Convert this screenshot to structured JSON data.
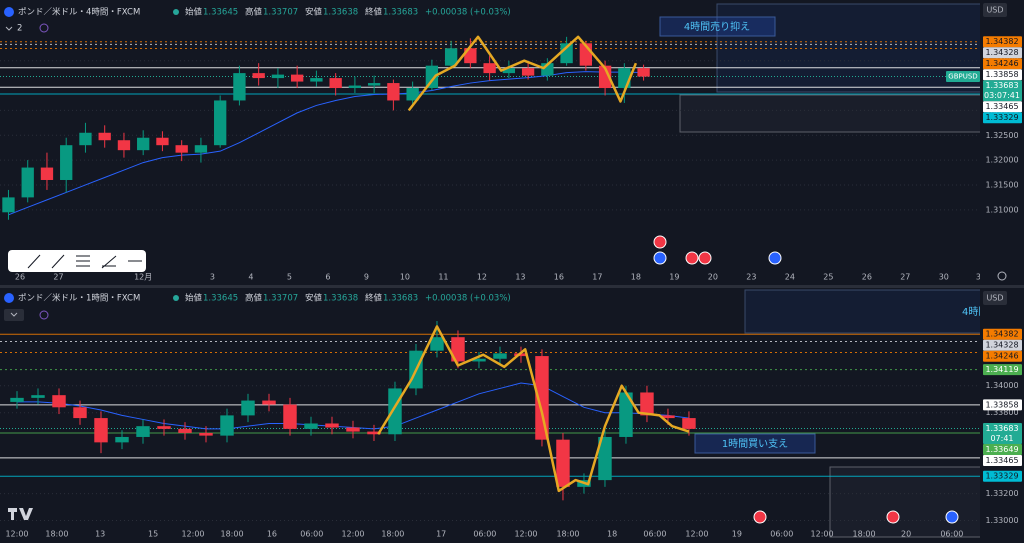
{
  "chart_data": [
    {
      "type": "candlestick",
      "title": "ポンド／米ドル・4時間・FXCM",
      "ohlc_labels": [
        "始値",
        "高値",
        "安値",
        "終値"
      ],
      "ohlc_values": [
        1.33645,
        1.33707,
        1.33638,
        1.33683
      ],
      "change": "+0.00038 (+0.03%)",
      "currency": "USD",
      "indicators_hidden": 2,
      "x": [
        -0.3,
        0.2,
        0.7,
        1.2,
        1.7,
        2.2,
        2.7,
        3.2,
        3.7,
        4.2,
        4.7,
        5.2,
        5.7,
        6.2,
        6.7,
        7.2,
        7.7,
        8.2,
        8.7,
        9.2,
        9.7,
        10.2,
        10.7,
        11.2,
        11.7,
        12.2,
        12.7,
        13.2,
        13.7,
        14.2,
        14.7,
        15.2,
        15.7,
        16.2
      ],
      "open": [
        1.3095,
        1.3125,
        1.3185,
        1.316,
        1.323,
        1.3255,
        1.324,
        1.322,
        1.3245,
        1.323,
        1.3215,
        1.323,
        1.332,
        1.3375,
        1.3365,
        1.3372,
        1.3358,
        1.3365,
        1.3345,
        1.335,
        1.3355,
        1.332,
        1.3345,
        1.339,
        1.3425,
        1.3395,
        1.3375,
        1.3385,
        1.337,
        1.3395,
        1.3435,
        1.339,
        1.3345,
        1.3385
      ],
      "high": [
        1.314,
        1.32,
        1.3215,
        1.3245,
        1.3275,
        1.327,
        1.3255,
        1.326,
        1.3258,
        1.324,
        1.3245,
        1.333,
        1.339,
        1.3395,
        1.3385,
        1.339,
        1.338,
        1.3375,
        1.3368,
        1.337,
        1.3362,
        1.3358,
        1.3402,
        1.344,
        1.3445,
        1.341,
        1.34,
        1.3398,
        1.3405,
        1.3448,
        1.344,
        1.34,
        1.3395,
        1.3392
      ],
      "low": [
        1.308,
        1.3115,
        1.314,
        1.3135,
        1.3215,
        1.3225,
        1.3205,
        1.321,
        1.3218,
        1.3198,
        1.3195,
        1.3225,
        1.331,
        1.335,
        1.3345,
        1.3345,
        1.3348,
        1.333,
        1.3335,
        1.3335,
        1.33,
        1.331,
        1.334,
        1.3385,
        1.3385,
        1.336,
        1.3365,
        1.3362,
        1.336,
        1.339,
        1.338,
        1.333,
        1.3315,
        1.336
      ],
      "close": [
        1.3125,
        1.3185,
        1.316,
        1.323,
        1.3255,
        1.324,
        1.322,
        1.3245,
        1.323,
        1.3215,
        1.323,
        1.332,
        1.3375,
        1.3365,
        1.3372,
        1.3358,
        1.3365,
        1.3345,
        1.335,
        1.3355,
        1.332,
        1.3345,
        1.339,
        1.3425,
        1.3395,
        1.3375,
        1.3385,
        1.337,
        1.3395,
        1.3435,
        1.339,
        1.3345,
        1.3385,
        1.3368
      ],
      "up_color": "#089981",
      "down_color": "#f23645",
      "ma": {
        "color": "#2962ff",
        "values": [
          1.309,
          1.3105,
          1.312,
          1.3135,
          1.315,
          1.3165,
          1.318,
          1.3195,
          1.3205,
          1.321,
          1.3212,
          1.3218,
          1.3235,
          1.3255,
          1.3275,
          1.3295,
          1.331,
          1.332,
          1.3328,
          1.3332,
          1.3333,
          1.3335,
          1.334,
          1.3348,
          1.3355,
          1.336,
          1.3363,
          1.3366,
          1.337,
          1.3376,
          1.3378,
          1.3377,
          1.3377,
          1.3376
        ]
      },
      "zigzag": {
        "color": "#e5a823",
        "x": [
          10.1,
          10.8,
          11.3,
          11.9,
          12.5,
          13.1,
          13.6,
          14.5,
          15.2,
          15.6,
          16.0
        ],
        "y": [
          1.33,
          1.337,
          1.339,
          1.3448,
          1.338,
          1.34,
          1.3385,
          1.3448,
          1.3385,
          1.3318,
          1.3395
        ]
      },
      "levels": [
        {
          "value": 1.34382,
          "color": "#f57c00",
          "style": "dotted",
          "text_color": "#131722"
        },
        {
          "value": 1.34328,
          "color": "#d1d4dc",
          "style": "dotted",
          "text_color": "#131722"
        },
        {
          "value": 1.34246,
          "color": "#f57c00",
          "style": "dotted",
          "text_color": "#131722"
        },
        {
          "value": 1.33858,
          "color": "#ffffff",
          "style": "solid",
          "text_color": "#131722"
        },
        {
          "value": 1.33465,
          "color": "#ffffff",
          "style": "solid",
          "text_color": "#131722"
        },
        {
          "value": 1.33329,
          "color": "#00bcd4",
          "style": "solid",
          "text_color": "#131722"
        }
      ],
      "last": {
        "value": 1.33683,
        "tag": "GBPUSD",
        "countdown": "03:07:41",
        "color": "#22ab94"
      },
      "notes": [
        "4時間売り抑え"
      ],
      "xlim": [
        -0.52,
        24.94
      ],
      "ylim": [
        1.2993,
        1.3506
      ],
      "xticks": [
        {
          "value": 0,
          "label": "26"
        },
        {
          "value": 1,
          "label": "27"
        },
        {
          "value": 3.2,
          "label": "12月"
        },
        {
          "value": 5,
          "label": "3"
        },
        {
          "value": 6,
          "label": "4"
        },
        {
          "value": 7,
          "label": "5"
        },
        {
          "value": 8,
          "label": "6"
        },
        {
          "value": 9,
          "label": "9"
        },
        {
          "value": 10,
          "label": "10"
        },
        {
          "value": 11,
          "label": "11"
        },
        {
          "value": 12,
          "label": "12"
        },
        {
          "value": 13,
          "label": "13"
        },
        {
          "value": 14,
          "label": "16"
        },
        {
          "value": 15,
          "label": "17"
        },
        {
          "value": 16,
          "label": "18"
        },
        {
          "value": 17,
          "label": "19"
        },
        {
          "value": 18,
          "label": "20"
        },
        {
          "value": 19,
          "label": "23"
        },
        {
          "value": 20,
          "label": "24"
        },
        {
          "value": 21,
          "label": "25"
        },
        {
          "value": 22,
          "label": "26"
        },
        {
          "value": 23,
          "label": "27"
        },
        {
          "value": 24,
          "label": "30"
        },
        {
          "value": 24.9,
          "label": "3"
        }
      ],
      "yticks": [
        {
          "value": 1.31,
          "label": "1.31000"
        },
        {
          "value": 1.315,
          "label": "1.31500"
        },
        {
          "value": 1.32,
          "label": "1.32000"
        },
        {
          "value": 1.325,
          "label": "1.32500"
        },
        {
          "value": 1.33,
          "label": "1.33000"
        },
        {
          "value": 1.34,
          "label": "1.34000"
        }
      ],
      "grid": true
    },
    {
      "type": "candlestick",
      "title": "ポンド／米ドル・1時間・FXCM",
      "ohlc_labels": [
        "始値",
        "高値",
        "安値",
        "終値"
      ],
      "ohlc_values": [
        1.33645,
        1.33707,
        1.33638,
        1.33683
      ],
      "change": "+0.00038 (+0.03%)",
      "currency": "USD",
      "x": [
        0,
        0.5,
        1,
        1.5,
        2,
        2.5,
        3,
        3.5,
        4,
        4.5,
        5,
        5.5,
        6,
        6.5,
        7,
        7.5,
        8,
        8.5,
        9,
        9.5,
        10,
        10.5,
        11,
        11.5,
        12,
        12.5,
        13,
        13.5,
        14,
        14.5,
        15,
        15.5,
        16
      ],
      "open": [
        1.3388,
        1.3391,
        1.3393,
        1.3384,
        1.3376,
        1.3358,
        1.3362,
        1.337,
        1.3368,
        1.3365,
        1.3363,
        1.3378,
        1.3389,
        1.3386,
        1.3368,
        1.3372,
        1.3369,
        1.3366,
        1.3364,
        1.3398,
        1.3426,
        1.3436,
        1.3418,
        1.342,
        1.3424,
        1.3422,
        1.336,
        1.3325,
        1.333,
        1.3362,
        1.3395,
        1.3378,
        1.3376
      ],
      "high": [
        1.3396,
        1.3398,
        1.3398,
        1.3389,
        1.3381,
        1.3367,
        1.3375,
        1.3375,
        1.3373,
        1.337,
        1.3383,
        1.3394,
        1.3394,
        1.3391,
        1.3377,
        1.3377,
        1.3374,
        1.3371,
        1.3403,
        1.3431,
        1.3448,
        1.3441,
        1.3425,
        1.3429,
        1.3429,
        1.3427,
        1.3365,
        1.3335,
        1.3367,
        1.34,
        1.34,
        1.3383,
        1.3381
      ],
      "low": [
        1.3383,
        1.3386,
        1.3379,
        1.3371,
        1.335,
        1.3353,
        1.3357,
        1.3363,
        1.336,
        1.3358,
        1.3358,
        1.3373,
        1.3381,
        1.3363,
        1.3363,
        1.3364,
        1.3361,
        1.3359,
        1.3359,
        1.3393,
        1.3421,
        1.3413,
        1.3413,
        1.3415,
        1.3417,
        1.3355,
        1.3315,
        1.332,
        1.3325,
        1.3357,
        1.3373,
        1.3371,
        1.3363
      ],
      "close": [
        1.3391,
        1.3393,
        1.3384,
        1.3376,
        1.3358,
        1.3362,
        1.337,
        1.3368,
        1.3365,
        1.3363,
        1.3378,
        1.3389,
        1.3386,
        1.3368,
        1.3372,
        1.3369,
        1.3366,
        1.3364,
        1.3398,
        1.3426,
        1.3436,
        1.3418,
        1.342,
        1.3424,
        1.3422,
        1.336,
        1.3325,
        1.333,
        1.3362,
        1.3395,
        1.3378,
        1.3376,
        1.3368
      ],
      "up_color": "#089981",
      "down_color": "#f23645",
      "ma": {
        "color": "#2962ff",
        "values": [
          1.3388,
          1.3388,
          1.3387,
          1.3385,
          1.3382,
          1.3378,
          1.3375,
          1.3372,
          1.337,
          1.3368,
          1.3368,
          1.337,
          1.3372,
          1.3372,
          1.3371,
          1.337,
          1.3369,
          1.3368,
          1.337,
          1.3376,
          1.3382,
          1.3388,
          1.3394,
          1.3398,
          1.3402,
          1.34,
          1.3392,
          1.3384,
          1.338,
          1.338,
          1.3379,
          1.3378,
          1.3376
        ]
      },
      "zigzag": {
        "color": "#e5a823",
        "x": [
          8.6,
          9.4,
          10.0,
          10.5,
          11.1,
          11.6,
          12.1,
          12.5,
          12.9,
          13.3,
          13.6,
          14.0,
          14.4,
          14.8,
          15.3,
          15.6,
          16.0
        ],
        "y": [
          1.3364,
          1.3405,
          1.3444,
          1.3415,
          1.3423,
          1.3414,
          1.3427,
          1.338,
          1.3322,
          1.333,
          1.3327,
          1.337,
          1.34,
          1.338,
          1.3378,
          1.337,
          1.3366
        ]
      },
      "levels": [
        {
          "value": 1.34382,
          "color": "#f57c00",
          "style": "solid",
          "text_color": "#131722"
        },
        {
          "value": 1.34328,
          "color": "#d1d4dc",
          "style": "dotted",
          "text_color": "#131722"
        },
        {
          "value": 1.34246,
          "color": "#f57c00",
          "style": "dotted",
          "text_color": "#131722"
        },
        {
          "value": 1.34119,
          "color": "#4caf50",
          "style": "dotted",
          "text_color": "#ffffff"
        },
        {
          "value": 1.33858,
          "color": "#ffffff",
          "style": "solid",
          "text_color": "#131722"
        },
        {
          "value": 1.33649,
          "color": "#4caf50",
          "style": "solid",
          "text_color": "#ffffff"
        },
        {
          "value": 1.33465,
          "color": "#ffffff",
          "style": "solid",
          "text_color": "#131722"
        },
        {
          "value": 1.33329,
          "color": "#00bcd4",
          "style": "solid",
          "text_color": "#131722"
        }
      ],
      "last": {
        "value": 1.33683,
        "countdown": "07:41",
        "color": "#22ab94"
      },
      "notes": [
        "4時間",
        "1時間買い支え"
      ],
      "xlim": [
        -0.405,
        22.93
      ],
      "ylim": [
        1.3293,
        1.3471
      ],
      "xticks": [
        {
          "value": 0,
          "label": "12:00"
        },
        {
          "value": 0.95,
          "label": "18:00"
        },
        {
          "value": 1.98,
          "label": "13"
        },
        {
          "value": 3.24,
          "label": "15"
        },
        {
          "value": 4.19,
          "label": "12:00"
        },
        {
          "value": 5.12,
          "label": "18:00"
        },
        {
          "value": 6.07,
          "label": "16"
        },
        {
          "value": 7.02,
          "label": "06:00"
        },
        {
          "value": 8.0,
          "label": "12:00"
        },
        {
          "value": 8.95,
          "label": "18:00"
        },
        {
          "value": 10.1,
          "label": "17"
        },
        {
          "value": 11.14,
          "label": "06:00"
        },
        {
          "value": 12.12,
          "label": "12:00"
        },
        {
          "value": 13.12,
          "label": "18:00"
        },
        {
          "value": 14.17,
          "label": "18"
        },
        {
          "value": 15.19,
          "label": "06:00"
        },
        {
          "value": 16.19,
          "label": "12:00"
        },
        {
          "value": 17.14,
          "label": "19"
        },
        {
          "value": 18.21,
          "label": "06:00"
        },
        {
          "value": 19.17,
          "label": "12:00"
        },
        {
          "value": 20.17,
          "label": "18:00"
        },
        {
          "value": 21.17,
          "label": "20"
        },
        {
          "value": 22.26,
          "label": "06:00"
        }
      ],
      "yticks": [
        {
          "value": 1.33,
          "label": "1.33000"
        },
        {
          "value": 1.332,
          "label": "1.33200"
        },
        {
          "value": 1.338,
          "label": "1.33800"
        },
        {
          "value": 1.34,
          "label": "1.34000"
        }
      ],
      "grid": true
    }
  ]
}
